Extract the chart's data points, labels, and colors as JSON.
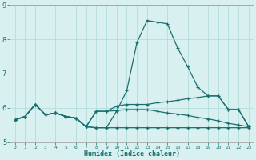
{
  "xlabel": "Humidex (Indice chaleur)",
  "bg_color": "#d8f0f0",
  "grid_color": "#aed8d8",
  "line_color": "#1a7070",
  "xlim": [
    -0.5,
    23.5
  ],
  "ylim": [
    5.0,
    9.0
  ],
  "yticks": [
    5,
    6,
    7,
    8,
    9
  ],
  "xticks": [
    0,
    1,
    2,
    3,
    4,
    5,
    6,
    7,
    8,
    9,
    10,
    11,
    12,
    13,
    14,
    15,
    16,
    17,
    18,
    19,
    20,
    21,
    22,
    23
  ],
  "lines": [
    [
      5.65,
      5.75,
      6.1,
      5.8,
      5.85,
      5.75,
      5.7,
      5.45,
      5.42,
      5.42,
      5.9,
      6.5,
      7.9,
      8.55,
      8.5,
      8.45,
      7.75,
      7.2,
      6.6,
      6.35,
      6.35,
      5.95,
      5.95,
      5.45
    ],
    [
      5.65,
      5.75,
      6.1,
      5.8,
      5.85,
      5.75,
      5.7,
      5.45,
      5.9,
      5.9,
      6.05,
      6.1,
      6.1,
      6.1,
      6.15,
      6.18,
      6.22,
      6.27,
      6.3,
      6.35,
      6.35,
      5.95,
      5.95,
      5.45
    ],
    [
      5.65,
      5.75,
      6.1,
      5.8,
      5.85,
      5.75,
      5.7,
      5.45,
      5.9,
      5.9,
      5.92,
      5.95,
      5.95,
      5.95,
      5.9,
      5.85,
      5.82,
      5.78,
      5.72,
      5.68,
      5.62,
      5.55,
      5.5,
      5.45
    ],
    [
      5.65,
      5.75,
      6.1,
      5.8,
      5.85,
      5.75,
      5.7,
      5.45,
      5.42,
      5.42,
      5.42,
      5.42,
      5.42,
      5.42,
      5.42,
      5.42,
      5.42,
      5.42,
      5.42,
      5.42,
      5.42,
      5.42,
      5.42,
      5.42
    ]
  ]
}
